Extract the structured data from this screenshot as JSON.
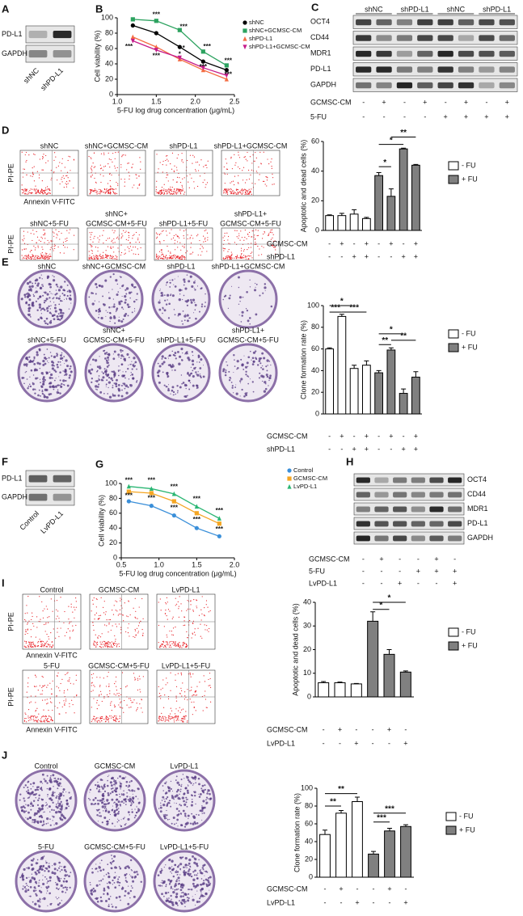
{
  "panel_labels": [
    "A",
    "B",
    "C",
    "D",
    "E",
    "F",
    "G",
    "H",
    "I",
    "J"
  ],
  "blots": [
    {
      "rows": [
        "PD-L1",
        "GAPDH"
      ],
      "lanes": [
        "shNC",
        "shPD-L1"
      ]
    },
    {
      "rows": [
        "OCT4",
        "CD44",
        "MDR1",
        "PD-L1",
        "GAPDH"
      ],
      "lane_groups": [
        "shNC",
        "shPD-L1",
        "shNC",
        "shPD-L1"
      ],
      "conditions": [
        {
          "name": "GCMSC-CM",
          "signs": [
            "-",
            "+",
            "-",
            "+",
            "-",
            "+",
            "-",
            "+"
          ]
        },
        {
          "name": "5-FU",
          "signs": [
            "-",
            "-",
            "-",
            "-",
            "+",
            "+",
            "+",
            "+"
          ]
        }
      ]
    },
    {
      "rows": [
        "PD-L1",
        "GAPDH"
      ],
      "lanes": [
        "Control",
        "LvPD-L1"
      ]
    },
    {
      "rows": [
        "OCT4",
        "CD44",
        "MDR1",
        "PD-L1",
        "GAPDH"
      ],
      "conditions": [
        {
          "name": "GCMSC-CM",
          "signs": [
            "-",
            "+",
            "-",
            "-",
            "+",
            "-"
          ]
        },
        {
          "name": "5-FU",
          "signs": [
            "-",
            "-",
            "-",
            "+",
            "+",
            "+"
          ]
        },
        {
          "name": "LvPD-L1",
          "signs": [
            "-",
            "-",
            "+",
            "-",
            "-",
            "+"
          ]
        }
      ]
    }
  ],
  "flow": [
    {
      "y_label": "PI-PE",
      "x_label": "Annexin V-FITC",
      "titles": [
        [
          "shNC"
        ],
        [
          "shNC+GCMSC-CM"
        ],
        [
          "shPD-L1"
        ],
        [
          "shPD-L1+GCMSC-CM"
        ],
        [
          "shNC+5-FU"
        ],
        [
          "shNC+",
          "GCMSC-CM+5-FU"
        ],
        [
          "shPD-L1+5-FU"
        ],
        [
          "shPD-L1+",
          "GCMSC-CM+5-FU"
        ]
      ]
    },
    {
      "y_label": "PI-PE",
      "x_label": "Annexin V-FITC",
      "titles": [
        [
          "Control"
        ],
        [
          "GCMSC-CM"
        ],
        [
          "LvPD-L1"
        ],
        [
          "5-FU"
        ],
        [
          "GCMSC-CM+5-FU"
        ],
        [
          "LvPD-L1+5-FU"
        ]
      ]
    }
  ],
  "plates": [
    {
      "titles": [
        [
          "shNC"
        ],
        [
          "shNC+GCMSC-CM"
        ],
        [
          "shPD-L1"
        ],
        [
          "shPD-L1+GCMSC-CM"
        ],
        [
          "shNC+5-FU"
        ],
        [
          "shNC+",
          "GCMSC-CM+5-FU"
        ],
        [
          "shPD-L1+5-FU"
        ],
        [
          "shPD-L1+",
          "GCMSC-CM+5-FU"
        ]
      ]
    },
    {
      "titles": [
        [
          "Control"
        ],
        [
          "GCMSC-CM"
        ],
        [
          "LvPD-L1"
        ],
        [
          "5-FU"
        ],
        [
          "GCMSC-CM+5-FU"
        ],
        [
          "LvPD-L1+5-FU"
        ]
      ]
    }
  ],
  "chart_data": [
    {
      "type": "line",
      "x_label": "5-FU log drug concentration (μg/mL)",
      "y_label": "Cell viability (%)",
      "x": [
        1.2,
        1.5,
        1.8,
        2.1,
        2.4
      ],
      "xlim": [
        1,
        2.5
      ],
      "xticks": [
        {
          "value": 1,
          "label": "1.0"
        },
        1.5,
        {
          "value": 2,
          "label": "2.0"
        },
        2.5
      ],
      "ylim": [
        0,
        100
      ],
      "yticks": [
        0,
        20,
        40,
        60,
        80,
        100
      ],
      "series": [
        {
          "name": "shNC",
          "color": "#000000",
          "marker": "circle",
          "values": [
            90,
            80,
            62,
            43,
            32
          ]
        },
        {
          "name": "shNC+GCMSC-CM",
          "color": "#2ca25f",
          "marker": "square",
          "values": [
            98,
            96,
            84,
            56,
            38
          ]
        },
        {
          "name": "shPD-L1",
          "color": "#f46d43",
          "marker": "triangle",
          "values": [
            75,
            62,
            46,
            32,
            20
          ]
        },
        {
          "name": "shPD-L1+GCMSC-CM",
          "color": "#c51b8a",
          "marker": "triangle-down",
          "values": [
            70,
            58,
            48,
            35,
            25
          ]
        }
      ],
      "annotations": [
        "***",
        "***",
        "***",
        "***",
        "***",
        "***",
        "*",
        "*",
        "***",
        "***"
      ]
    },
    {
      "type": "bar",
      "y_label": "Apoptotic and dead cells (%)",
      "ylim": [
        0,
        60
      ],
      "yticks": [
        0,
        20,
        40,
        60
      ],
      "series": [
        {
          "name": "- FU",
          "color": "#ffffff",
          "values": [
            10,
            10,
            11,
            8
          ],
          "errors": [
            0.5,
            1.5,
            3,
            0.8
          ]
        },
        {
          "name": "+ FU",
          "color": "#808080",
          "values": [
            37,
            23,
            55,
            44
          ],
          "errors": [
            2,
            5,
            0.5,
            0.5
          ]
        }
      ],
      "conditions": [
        {
          "name": "GCMSC-CM",
          "signs": [
            "-",
            "+",
            "-",
            "+",
            "-",
            "+",
            "-",
            "+"
          ]
        },
        {
          "name": "shPD-L1",
          "signs": [
            "-",
            "-",
            "+",
            "+",
            "-",
            "-",
            "+",
            "+"
          ]
        }
      ],
      "annotations": [
        "*",
        "*",
        "**"
      ]
    },
    {
      "type": "bar",
      "y_label": "Clone formation rate (%)",
      "ylim": [
        0,
        100
      ],
      "yticks": [
        0,
        20,
        40,
        60,
        80,
        100
      ],
      "series": [
        {
          "name": "- FU",
          "color": "#ffffff",
          "values": [
            60,
            90,
            42,
            45
          ],
          "errors": [
            1,
            2,
            3,
            4
          ]
        },
        {
          "name": "+ FU",
          "color": "#808080",
          "values": [
            38,
            59,
            19,
            34
          ],
          "errors": [
            2,
            2,
            4,
            5
          ]
        }
      ],
      "conditions": [
        {
          "name": "GCMSC-CM",
          "signs": [
            "-",
            "+",
            "-",
            "+",
            "-",
            "+",
            "-",
            "+"
          ]
        },
        {
          "name": "shPD-L1",
          "signs": [
            "-",
            "-",
            "+",
            "+",
            "-",
            "-",
            "+",
            "+"
          ]
        }
      ],
      "annotations": [
        "*",
        "***",
        "***",
        "**",
        "*",
        "**"
      ]
    },
    {
      "type": "line",
      "x_label": "5-FU log drug concentration (μg/mL)",
      "y_label": "Cell viability (%)",
      "x": [
        0.6,
        0.9,
        1.2,
        1.5,
        1.8
      ],
      "xlim": [
        0.5,
        2
      ],
      "xticks": [
        0.5,
        {
          "value": 1,
          "label": "1.0"
        },
        1.5,
        {
          "value": 2,
          "label": "2.0"
        }
      ],
      "ylim": [
        0,
        100
      ],
      "yticks": [
        0,
        20,
        40,
        60,
        80,
        100
      ],
      "series": [
        {
          "name": "Control",
          "color": "#3a8fd9",
          "marker": "circle",
          "values": [
            76,
            70,
            57,
            40,
            29
          ]
        },
        {
          "name": "GCMSC-CM",
          "color": "#f5a623",
          "marker": "square",
          "values": [
            89,
            87,
            76,
            60,
            46
          ]
        },
        {
          "name": "LvPD-L1",
          "color": "#2bb673",
          "marker": "triangle",
          "values": [
            96,
            93,
            86,
            69,
            53
          ]
        }
      ],
      "annotations": [
        "***",
        "***",
        "***",
        "***",
        "***",
        "***",
        "***",
        "***",
        "***",
        "***"
      ]
    },
    {
      "type": "bar",
      "y_label": "Apoptotic and dead cells (%)",
      "ylim": [
        0,
        40
      ],
      "yticks": [
        0,
        10,
        20,
        30,
        40
      ],
      "series": [
        {
          "name": "- FU",
          "color": "#ffffff",
          "values": [
            6,
            6,
            5.5
          ],
          "errors": [
            0.5,
            0.3,
            0.2
          ]
        },
        {
          "name": "+ FU",
          "color": "#808080",
          "values": [
            32,
            18,
            10.5
          ],
          "errors": [
            4,
            2,
            0.5
          ]
        }
      ],
      "conditions": [
        {
          "name": "GCMSC-CM",
          "signs": [
            "-",
            "+",
            "-",
            "-",
            "+",
            "-"
          ]
        },
        {
          "name": "LvPD-L1",
          "signs": [
            "-",
            "-",
            "+",
            "-",
            "-",
            "+"
          ]
        }
      ],
      "annotations": [
        "*",
        "*"
      ]
    },
    {
      "type": "bar",
      "y_label": "Clone formation rate (%)",
      "ylim": [
        0,
        100
      ],
      "yticks": [
        0,
        20,
        40,
        60,
        80,
        100
      ],
      "series": [
        {
          "name": "- FU",
          "color": "#ffffff",
          "values": [
            48,
            72,
            85
          ],
          "errors": [
            5,
            3,
            5
          ]
        },
        {
          "name": "+ FU",
          "color": "#808080",
          "values": [
            26,
            52,
            57
          ],
          "errors": [
            3,
            3,
            2
          ]
        }
      ],
      "conditions": [
        {
          "name": "GCMSC-CM",
          "signs": [
            "-",
            "+",
            "-",
            "-",
            "+",
            "-"
          ]
        },
        {
          "name": "LvPD-L1",
          "signs": [
            "-",
            "-",
            "+",
            "-",
            "-",
            "+"
          ]
        }
      ],
      "annotations": [
        "**",
        "**",
        "***",
        "***"
      ]
    }
  ]
}
